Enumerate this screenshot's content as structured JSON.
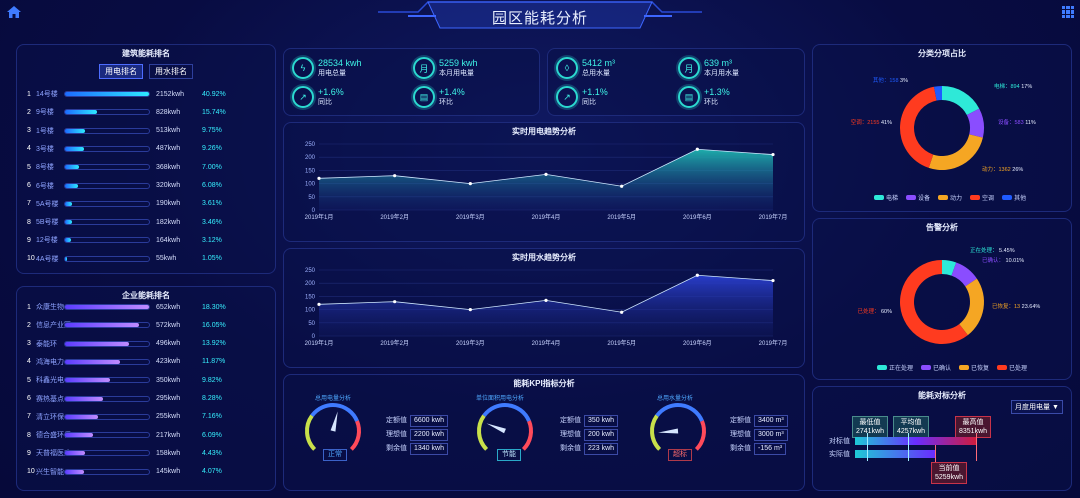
{
  "header": {
    "title": "园区能耗分析"
  },
  "building_rank": {
    "title": "建筑能耗排名",
    "tabs": [
      "用电排名",
      "用水排名"
    ],
    "items": [
      {
        "n": "1",
        "name": "14号楼",
        "value": "2152kwh",
        "pct": "40.92%",
        "f": 1.0
      },
      {
        "n": "2",
        "name": "9号楼",
        "value": "828kwh",
        "pct": "15.74%",
        "f": 0.385
      },
      {
        "n": "3",
        "name": "1号楼",
        "value": "513kwh",
        "pct": "9.75%",
        "f": 0.238
      },
      {
        "n": "4",
        "name": "3号楼",
        "value": "487kwh",
        "pct": "9.26%",
        "f": 0.226
      },
      {
        "n": "5",
        "name": "8号楼",
        "value": "368kwh",
        "pct": "7.00%",
        "f": 0.171
      },
      {
        "n": "6",
        "name": "6号楼",
        "value": "320kwh",
        "pct": "6.08%",
        "f": 0.149
      },
      {
        "n": "7",
        "name": "5A号楼",
        "value": "190kwh",
        "pct": "3.61%",
        "f": 0.088
      },
      {
        "n": "8",
        "name": "5B号楼",
        "value": "182kwh",
        "pct": "3.46%",
        "f": 0.085
      },
      {
        "n": "9",
        "name": "12号楼",
        "value": "164kwh",
        "pct": "3.12%",
        "f": 0.076
      },
      {
        "n": "10",
        "name": "4A号楼",
        "value": "55kwh",
        "pct": "1.05%",
        "f": 0.026
      }
    ]
  },
  "company_rank": {
    "title": "企业能耗排名",
    "items": [
      {
        "n": "1",
        "name": "众康生物",
        "value": "652kwh",
        "pct": "18.30%",
        "f": 1.0
      },
      {
        "n": "2",
        "name": "信息产业园",
        "value": "572kwh",
        "pct": "16.05%",
        "f": 0.877
      },
      {
        "n": "3",
        "name": "泰能环",
        "value": "496kwh",
        "pct": "13.92%",
        "f": 0.76
      },
      {
        "n": "4",
        "name": "鸿海电力",
        "value": "423kwh",
        "pct": "11.87%",
        "f": 0.649
      },
      {
        "n": "5",
        "name": "科鑫光电",
        "value": "350kwh",
        "pct": "9.82%",
        "f": 0.537
      },
      {
        "n": "6",
        "name": "赛热基点",
        "value": "295kwh",
        "pct": "8.28%",
        "f": 0.452
      },
      {
        "n": "7",
        "name": "清立环保",
        "value": "255kwh",
        "pct": "7.16%",
        "f": 0.391
      },
      {
        "n": "8",
        "name": "德合盛环保",
        "value": "217kwh",
        "pct": "6.09%",
        "f": 0.333
      },
      {
        "n": "9",
        "name": "天普福医疗",
        "value": "158kwh",
        "pct": "4.43%",
        "f": 0.242
      },
      {
        "n": "10",
        "name": "兴生智能",
        "value": "145kwh",
        "pct": "4.07%",
        "f": 0.222
      }
    ]
  },
  "elec_kpi": {
    "total": "28534 kwh",
    "total_label": "用电总量",
    "month": "5259 kwh",
    "month_label": "本月用电量",
    "yoy": "+1.6%",
    "yoy_label": "同比",
    "mom": "+1.4%",
    "mom_label": "环比"
  },
  "water_kpi": {
    "total": "5412 m³",
    "total_label": "总用水量",
    "month": "639 m³",
    "month_label": "本月用水量",
    "yoy": "+1.1%",
    "yoy_label": "同比",
    "mom": "+1.3%",
    "mom_label": "环比"
  },
  "elec_trend": {
    "title": "实时用电趋势分析"
  },
  "water_trend": {
    "title": "实时用水趋势分析"
  },
  "chart_data": [
    {
      "type": "area",
      "title": "实时用电趋势分析",
      "categories": [
        "2019年1月",
        "2019年2月",
        "2019年3月",
        "2019年4月",
        "2019年5月",
        "2019年6月",
        "2019年7月"
      ],
      "values": [
        120,
        130,
        100,
        135,
        90,
        230,
        210
      ],
      "ylim": [
        0,
        250
      ],
      "yticks": [
        0,
        50,
        100,
        150,
        200,
        250
      ]
    },
    {
      "type": "area",
      "title": "实时用水趋势分析",
      "categories": [
        "2019年1月",
        "2019年2月",
        "2019年3月",
        "2019年4月",
        "2019年5月",
        "2019年6月",
        "2019年7月"
      ],
      "values": [
        120,
        130,
        100,
        135,
        90,
        230,
        210
      ],
      "ylim": [
        0,
        250
      ],
      "yticks": [
        0,
        50,
        100,
        150,
        200,
        250
      ]
    },
    {
      "type": "pie",
      "title": "分类分项占比",
      "series": [
        {
          "name": "电梯",
          "value": 894,
          "pct": "17%",
          "color": "#2ee9d8"
        },
        {
          "name": "设备",
          "value": 583,
          "pct": "11%",
          "color": "#8a4dff"
        },
        {
          "name": "动力",
          "value": 1362,
          "pct": "26%",
          "color": "#f5a623"
        },
        {
          "name": "空调",
          "value": 2155,
          "pct": "41%",
          "color": "#ff3b1f"
        },
        {
          "name": "其他",
          "value": 158,
          "pct": "3%",
          "color": "#1f5bff"
        }
      ],
      "legend": [
        "电梯",
        "设备",
        "动力",
        "空调",
        "其他"
      ]
    },
    {
      "type": "pie",
      "title": "告警分析",
      "series": [
        {
          "name": "正在处理",
          "value": 5.45,
          "pct": "5.45%",
          "color": "#2ee9d8"
        },
        {
          "name": "已确认",
          "value": 10.01,
          "pct": "10.01%",
          "color": "#8a4dff"
        },
        {
          "name": "已恢复",
          "value": 23.64,
          "pct": "23.64%",
          "color": "#f5a623"
        },
        {
          "name": "已处理",
          "value": 60,
          "pct": "60%",
          "color": "#ff3b1f"
        }
      ],
      "legend": [
        "正在处理",
        "已确认",
        "已恢复",
        "已处理"
      ]
    }
  ],
  "pie1": {
    "title": "分类分项占比",
    "labels": {
      "elevator": "电梯：894",
      "elevator_pct": "17%",
      "equip": "设备：583",
      "equip_pct": "11%",
      "power": "动力：1362",
      "power_pct": "26%",
      "ac": "空调：2155",
      "ac_pct": "41%",
      "other": "其他：158",
      "other_pct": "3%"
    }
  },
  "pie2": {
    "title": "告警分析",
    "labels": {
      "proc": "正在处理：",
      "proc_pct": "5.45%",
      "conf": "已确认：",
      "conf_pct": "10.01%",
      "rec": "已恢复：13",
      "rec_pct": "23.64%",
      "done": "已处理：",
      "done_pct": "60%"
    }
  },
  "kpi_section": {
    "title": "能耗KPI指标分析",
    "g1": {
      "label": "总用电量分析",
      "status": "正常",
      "level": 0.55,
      "k1": "定额值",
      "v1": "6600 kwh",
      "k2": "理想值",
      "v2": "2200 kwh",
      "k3": "剩余值",
      "v3": "1340 kwh"
    },
    "g2": {
      "label": "单位面积用电分析",
      "status": "节能",
      "level": 0.25,
      "k1": "定额值",
      "v1": "350 kwh",
      "k2": "理想值",
      "v2": "200 kwh",
      "k3": "剩余值",
      "v3": "223 kwh"
    },
    "g3": {
      "label": "总用水量分析",
      "status": "超标",
      "level": 0.15,
      "k1": "定额值",
      "v1": "3400 m³",
      "k2": "理想值",
      "v2": "3000 m³",
      "k3": "剩余值",
      "v3": "-156 m³"
    }
  },
  "compare": {
    "title": "能耗对标分析",
    "select": "月度用电量",
    "min_label": "最低值",
    "min_val": "2741kwh",
    "avg_label": "平均值",
    "avg_val": "4257kwh",
    "max_label": "最高值",
    "max_val": "8351kwh",
    "cur_label": "当前值",
    "cur_val": "5259kwh",
    "row1": "对标值",
    "row2": "实际值"
  }
}
